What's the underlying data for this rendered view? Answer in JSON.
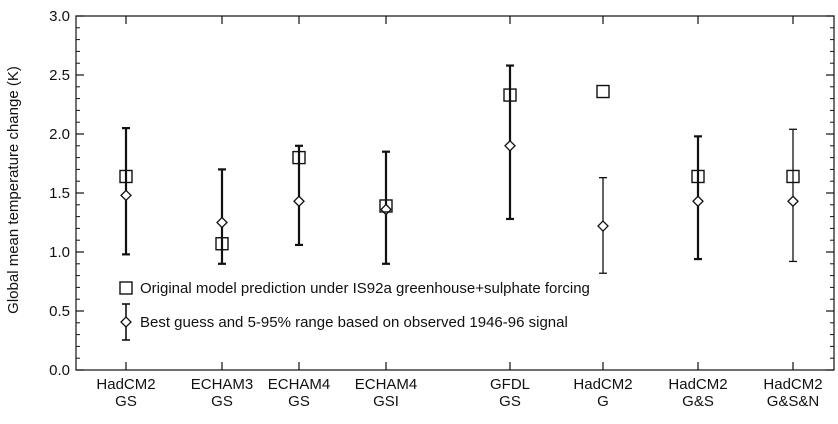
{
  "chart_data": {
    "type": "scatter",
    "title": "",
    "xlabel": "",
    "ylabel": "Global mean temperature change (K)",
    "ylim": [
      0.0,
      3.0
    ],
    "yticks": [
      "0.0",
      "0.5",
      "1.0",
      "1.5",
      "2.0",
      "2.5",
      "3.0"
    ],
    "categories": [
      [
        "HadCM2",
        "GS"
      ],
      [
        "ECHAM3",
        "GS"
      ],
      [
        "ECHAM4",
        "GS"
      ],
      [
        "ECHAM4",
        "GSI"
      ],
      [
        "GFDL",
        "GS"
      ],
      [
        "HadCM2",
        "G"
      ],
      [
        "HadCM2",
        "G&S"
      ],
      [
        "HadCM2",
        "G&S&N"
      ]
    ],
    "series": [
      {
        "name": "Original model prediction under IS92a greenhouse+sulphate forcing",
        "marker": "square",
        "values": [
          1.64,
          1.07,
          1.8,
          1.39,
          2.33,
          2.36,
          1.64,
          1.64
        ]
      },
      {
        "name": "Best guess and 5-95% range based on observed 1946-96 signal",
        "marker": "diamond",
        "values": [
          1.48,
          1.25,
          1.43,
          1.36,
          1.9,
          1.22,
          1.43,
          1.43
        ],
        "lower": [
          0.98,
          0.9,
          1.06,
          0.9,
          1.28,
          0.82,
          0.94,
          0.92
        ],
        "upper": [
          2.05,
          1.7,
          1.9,
          1.85,
          2.58,
          1.63,
          1.98,
          2.04
        ]
      }
    ],
    "legend_position": "bottom-left",
    "grid": false
  }
}
